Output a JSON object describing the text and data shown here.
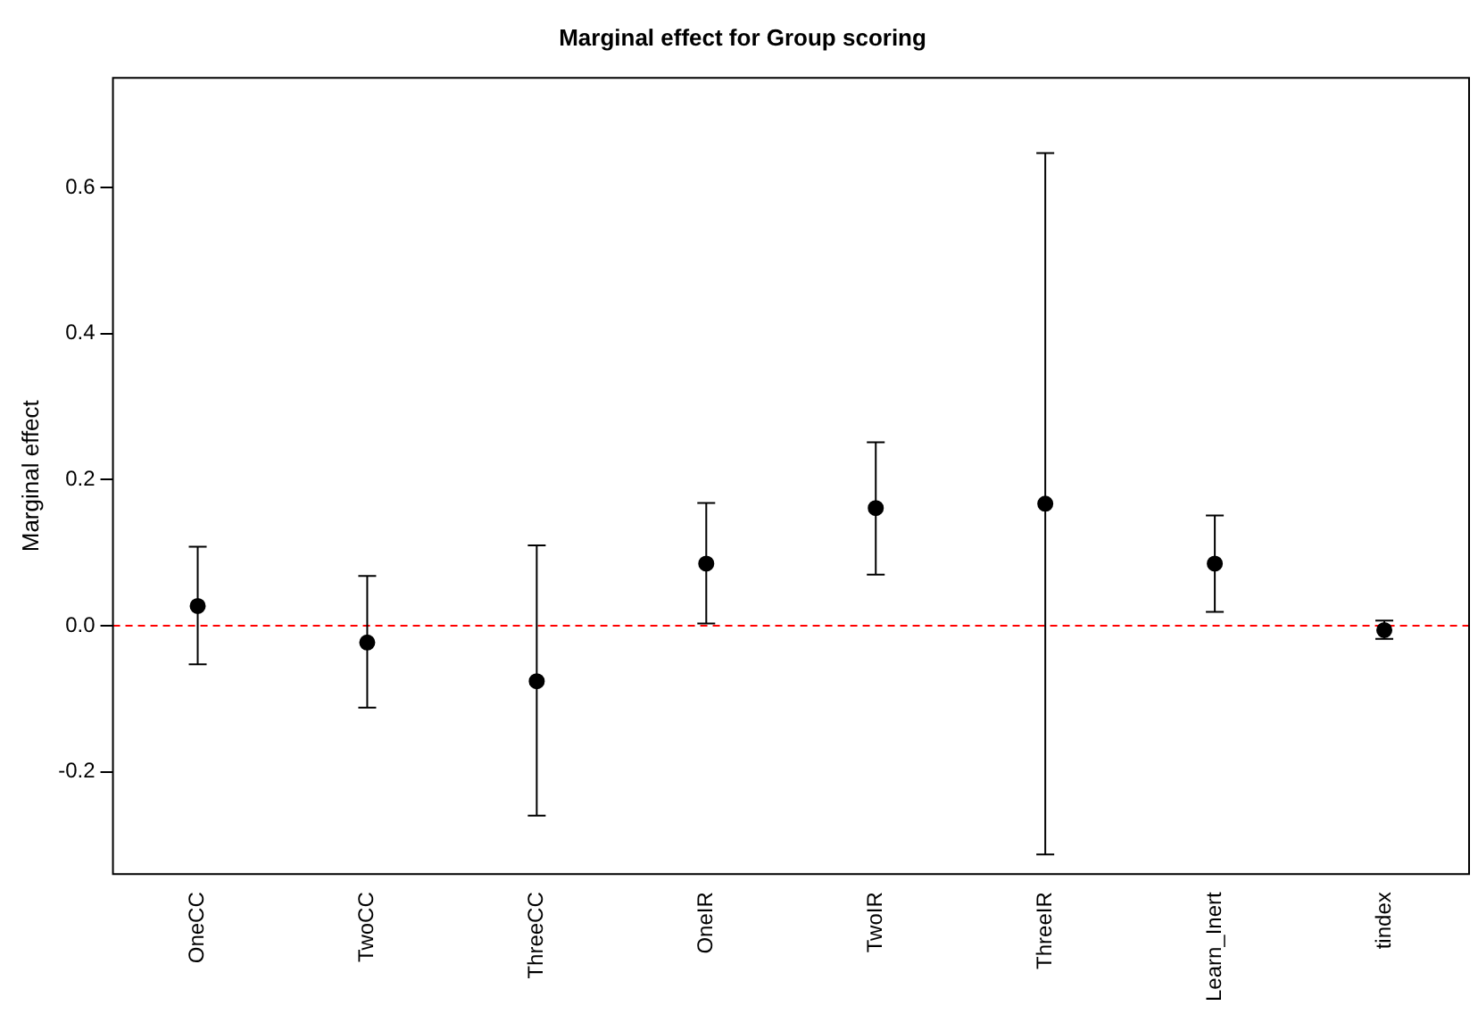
{
  "chart_data": {
    "type": "scatter",
    "title": "Marginal effect for Group scoring",
    "ylabel": "Marginal effect",
    "categories": [
      "OneCC",
      "TwoCC",
      "ThreeCC",
      "OneIR",
      "TwoIR",
      "ThreeIR",
      "Learn_Inert",
      "tindex"
    ],
    "values": [
      0.027,
      -0.023,
      -0.076,
      0.085,
      0.161,
      0.167,
      0.085,
      -0.006
    ],
    "errors": [
      [
        -0.053,
        0.108
      ],
      [
        -0.112,
        0.068
      ],
      [
        -0.26,
        0.11
      ],
      [
        0.003,
        0.168
      ],
      [
        0.07,
        0.251
      ],
      [
        -0.313,
        0.647
      ],
      [
        0.019,
        0.151
      ],
      [
        -0.018,
        0.007
      ]
    ],
    "color": "#000000",
    "marker": "circle",
    "grid": false,
    "legend": false,
    "ylim": [
      -0.34,
      0.75
    ],
    "yticks": [
      -0.2,
      {
        "value": 0,
        "label": "0.0"
      },
      0.2,
      0.4,
      0.6
    ],
    "ref_lines": [
      {
        "axis": "y",
        "value": 0,
        "color": "#ff0000",
        "line_style": "dashed"
      }
    ]
  }
}
